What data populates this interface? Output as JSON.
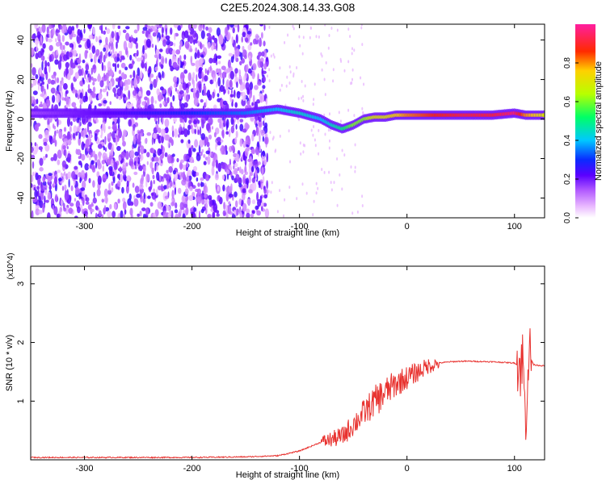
{
  "title": "C2E5.2024.308.14.33.G08",
  "chart_data": [
    {
      "type": "heatmap",
      "xlabel": "Height of straight line (km)",
      "ylabel": "Frequency (Hz)",
      "xlim": [
        -350,
        128
      ],
      "ylim": [
        -50,
        48
      ],
      "xticks": [
        -300,
        -200,
        -100,
        0,
        100
      ],
      "yticks": [
        -40,
        -20,
        0,
        20,
        40
      ],
      "colorbar": {
        "label": "Normalized spectral amplitude",
        "ticks": [
          0.0,
          0.2,
          0.4,
          0.6,
          0.8
        ],
        "range": [
          0,
          1
        ]
      },
      "ridge": {
        "x": [
          -350,
          -300,
          -250,
          -200,
          -150,
          -120,
          -100,
          -80,
          -70,
          -60,
          -50,
          -40,
          -30,
          -20,
          -10,
          0,
          20,
          50,
          80,
          100,
          110,
          128
        ],
        "freq": [
          3,
          3,
          3,
          3,
          3,
          5,
          3,
          0,
          -3,
          -5,
          -3,
          0,
          1,
          1,
          2,
          2,
          2,
          2,
          2,
          3,
          2,
          2
        ],
        "amplitude": [
          0.15,
          0.2,
          0.25,
          0.3,
          0.35,
          0.4,
          0.45,
          0.4,
          0.45,
          0.5,
          0.6,
          0.6,
          0.7,
          0.7,
          0.75,
          0.8,
          0.85,
          0.9,
          0.9,
          0.95,
          0.8,
          0.7
        ]
      }
    },
    {
      "type": "line",
      "xlabel": "Height of straight line (km)",
      "ylabel": "SNR (10 * v/v)",
      "y_multiplier": "(x10^4)",
      "xlim": [
        -350,
        128
      ],
      "ylim": [
        0,
        3.3
      ],
      "xticks": [
        -300,
        -200,
        -100,
        0,
        100
      ],
      "yticks": [
        1,
        2,
        3
      ],
      "series": [
        {
          "color": "#e8322f",
          "x": [
            -350,
            -300,
            -250,
            -200,
            -150,
            -120,
            -100,
            -80,
            -60,
            -50,
            -40,
            -30,
            -20,
            -10,
            0,
            10,
            20,
            30,
            40,
            50,
            60,
            80,
            90,
            100,
            105,
            108,
            110,
            113,
            118,
            128
          ],
          "y": [
            0.04,
            0.04,
            0.04,
            0.04,
            0.05,
            0.07,
            0.15,
            0.3,
            0.4,
            0.6,
            0.8,
            1.0,
            1.15,
            1.3,
            1.4,
            1.5,
            1.6,
            1.65,
            1.67,
            1.68,
            1.68,
            1.67,
            1.66,
            1.65,
            1.6,
            1.7,
            0.6,
            1.8,
            1.62,
            1.6
          ]
        }
      ]
    }
  ]
}
